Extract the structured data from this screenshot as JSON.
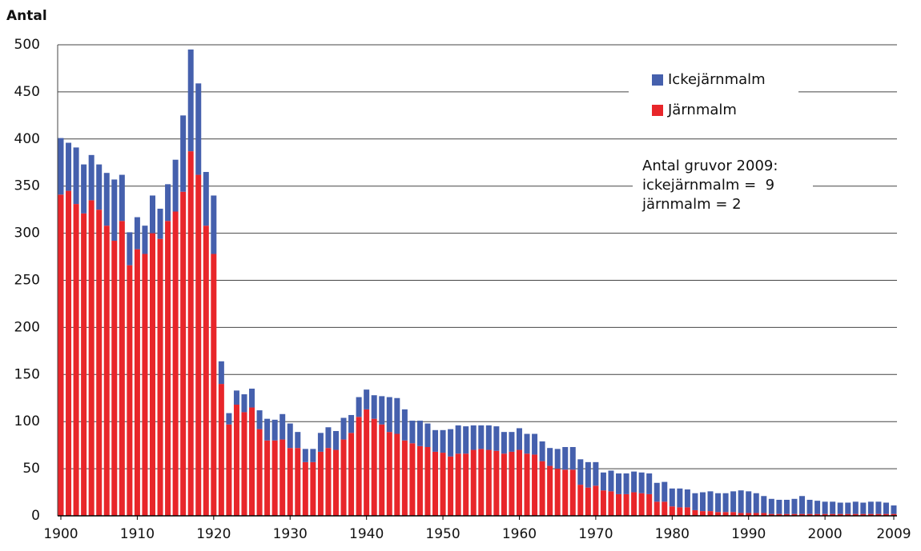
{
  "chart_data": {
    "type": "stacked_bar",
    "y_label": "Antal",
    "x": [
      1900,
      1901,
      1902,
      1903,
      1904,
      1905,
      1906,
      1907,
      1908,
      1909,
      1910,
      1911,
      1912,
      1913,
      1914,
      1915,
      1916,
      1917,
      1918,
      1919,
      1920,
      1921,
      1922,
      1923,
      1924,
      1925,
      1926,
      1927,
      1928,
      1929,
      1930,
      1931,
      1932,
      1933,
      1934,
      1935,
      1936,
      1937,
      1938,
      1939,
      1940,
      1941,
      1942,
      1943,
      1944,
      1945,
      1946,
      1947,
      1948,
      1949,
      1950,
      1951,
      1952,
      1953,
      1954,
      1955,
      1956,
      1957,
      1958,
      1959,
      1960,
      1961,
      1962,
      1963,
      1964,
      1965,
      1966,
      1967,
      1968,
      1969,
      1970,
      1971,
      1972,
      1973,
      1974,
      1975,
      1976,
      1977,
      1978,
      1979,
      1980,
      1981,
      1982,
      1983,
      1984,
      1985,
      1986,
      1987,
      1988,
      1989,
      1990,
      1991,
      1992,
      1993,
      1994,
      1995,
      1996,
      1997,
      1998,
      1999,
      2000,
      2001,
      2002,
      2003,
      2004,
      2005,
      2006,
      2007,
      2008,
      2009
    ],
    "series": [
      {
        "name": "Järnmalm",
        "color": "#e8262a",
        "values": [
          341,
          345,
          331,
          321,
          335,
          325,
          308,
          292,
          313,
          266,
          283,
          278,
          300,
          294,
          313,
          323,
          344,
          387,
          362,
          308,
          278,
          140,
          97,
          118,
          110,
          115,
          92,
          80,
          80,
          81,
          72,
          72,
          57,
          57,
          68,
          72,
          70,
          81,
          88,
          105,
          113,
          103,
          97,
          89,
          87,
          80,
          77,
          74,
          73,
          68,
          67,
          63,
          66,
          66,
          70,
          71,
          70,
          69,
          66,
          68,
          70,
          66,
          65,
          58,
          53,
          50,
          49,
          49,
          33,
          30,
          32,
          27,
          26,
          23,
          23,
          25,
          24,
          23,
          15,
          15,
          10,
          9,
          9,
          6,
          5,
          5,
          4,
          4,
          4,
          3,
          3,
          3,
          3,
          2,
          2,
          2,
          2,
          2,
          2,
          2,
          2,
          2,
          2,
          2,
          2,
          2,
          2,
          2,
          2,
          2
        ]
      },
      {
        "name": "Ickejärnmalm",
        "color": "#4560ad",
        "values": [
          60,
          51,
          60,
          52,
          48,
          48,
          56,
          65,
          49,
          35,
          34,
          30,
          40,
          32,
          39,
          55,
          81,
          108,
          97,
          57,
          62,
          24,
          12,
          15,
          19,
          20,
          20,
          23,
          22,
          27,
          26,
          17,
          14,
          14,
          20,
          22,
          20,
          23,
          19,
          21,
          21,
          25,
          30,
          37,
          38,
          33,
          24,
          27,
          25,
          23,
          24,
          29,
          30,
          29,
          26,
          25,
          26,
          26,
          23,
          21,
          23,
          21,
          22,
          21,
          19,
          21,
          24,
          24,
          27,
          27,
          25,
          19,
          22,
          22,
          22,
          22,
          22,
          22,
          20,
          21,
          19,
          20,
          19,
          18,
          20,
          21,
          20,
          20,
          22,
          24,
          23,
          21,
          18,
          16,
          15,
          15,
          16,
          19,
          15,
          14,
          13,
          13,
          12,
          12,
          13,
          12,
          13,
          13,
          12,
          9
        ]
      }
    ],
    "xlim": [
      1900,
      2009
    ],
    "xticks": [
      1900,
      1910,
      1920,
      1930,
      1940,
      1950,
      1960,
      1970,
      1980,
      1990,
      2000,
      2009
    ],
    "ylim": [
      0,
      500
    ],
    "yticks": [
      0,
      50,
      100,
      150,
      200,
      250,
      300,
      350,
      400,
      450,
      500
    ],
    "grid": true,
    "annotation": [
      "Antal gruvor 2009:",
      "ickejärnmalm =  9",
      "järnmalm = 2"
    ]
  }
}
